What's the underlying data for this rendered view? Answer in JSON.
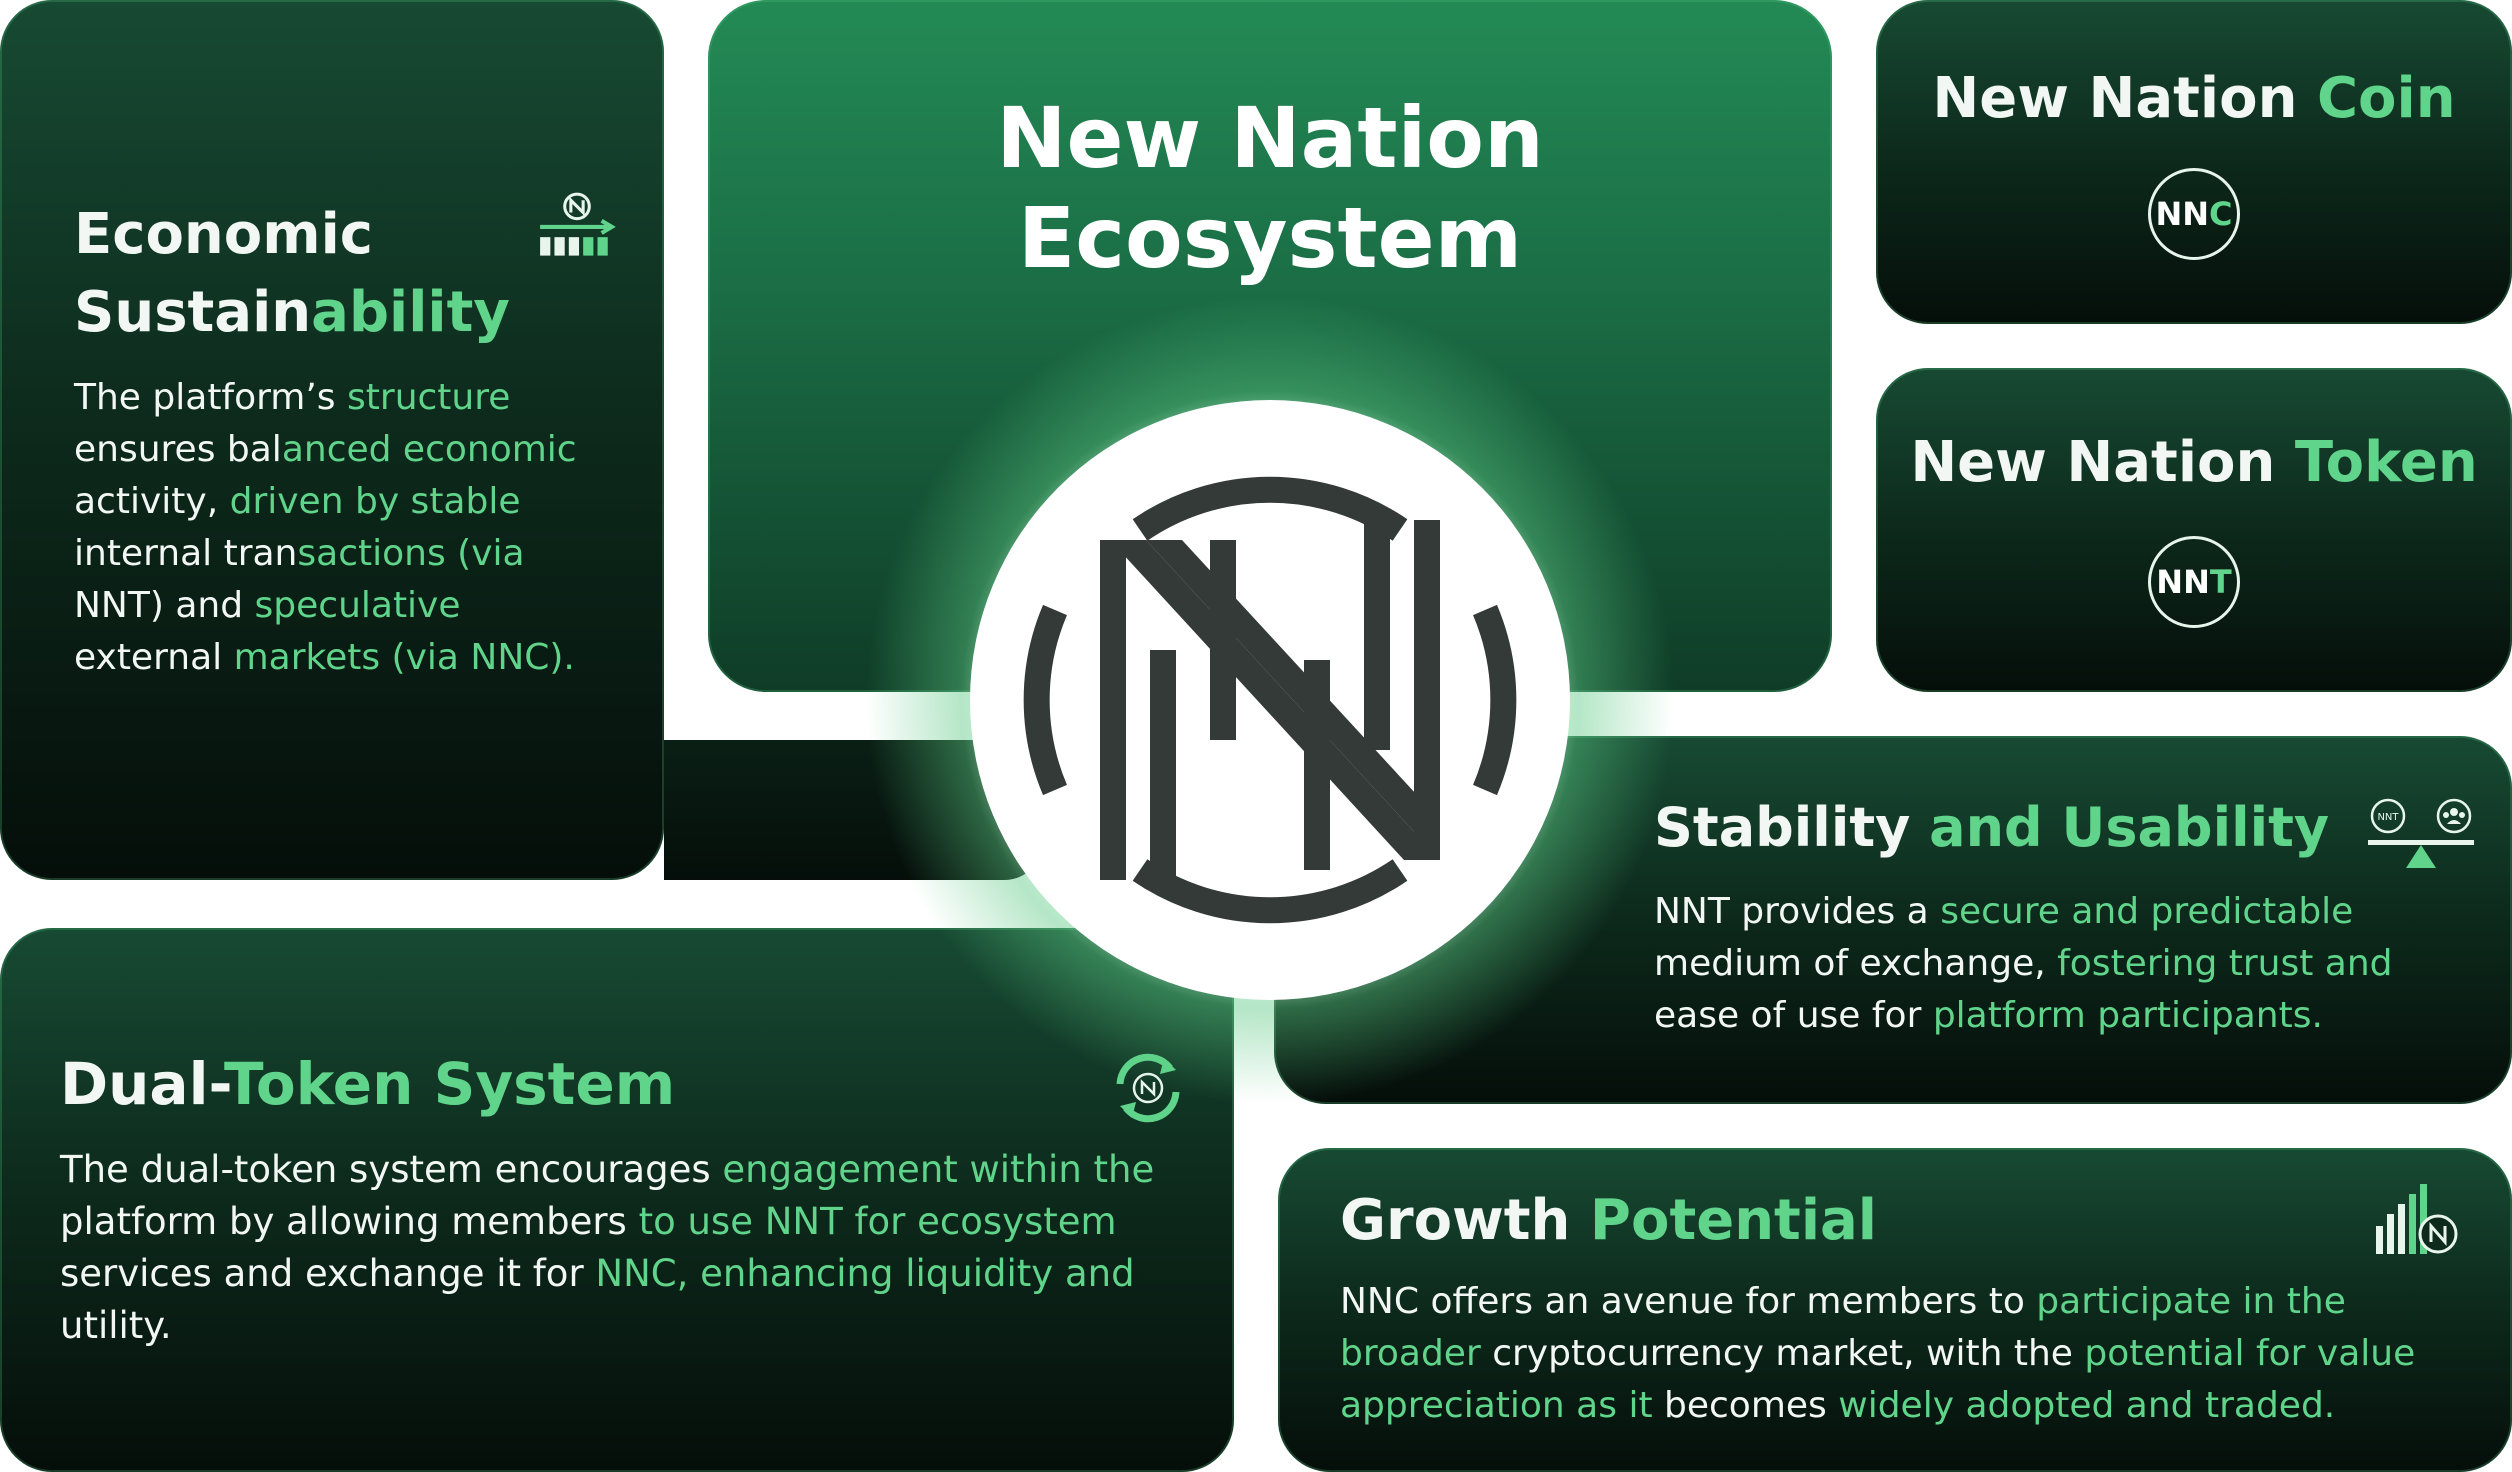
{
  "center": {
    "title_line1": "New Nation",
    "title_line2": "Ecosystem"
  },
  "economic": {
    "title_w": "Economic",
    "title_sus": "Sustain",
    "title_g": "ability",
    "body": [
      {
        "t": "The platform’s ",
        "c": "w"
      },
      {
        "t": "structure",
        "c": "g"
      },
      {
        "t": " ensures bal",
        "c": "w"
      },
      {
        "t": "anced economic",
        "c": "g"
      },
      {
        "t": " activity, ",
        "c": "w"
      },
      {
        "t": "driven by stable",
        "c": "g"
      },
      {
        "t": " internal tran",
        "c": "w"
      },
      {
        "t": "sactions (via",
        "c": "g"
      },
      {
        "t": " NNT) and ",
        "c": "w"
      },
      {
        "t": "speculative",
        "c": "g"
      },
      {
        "t": " external ",
        "c": "w"
      },
      {
        "t": "markets (via NNC).",
        "c": "g"
      }
    ]
  },
  "nnc": {
    "title_w": "New Nation ",
    "title_g": "Coin",
    "badge_a": "NN",
    "badge_b": "C"
  },
  "nnt": {
    "title_w": "New Nation ",
    "title_g": "Token",
    "badge_a": "NN",
    "badge_b": "T"
  },
  "stability": {
    "title_w": "Stability ",
    "title_g": "and Usability",
    "icon_left_label": "NNT",
    "body": [
      {
        "t": "NNT provides a ",
        "c": "w"
      },
      {
        "t": "secure and predictable",
        "c": "g"
      },
      {
        "t": " medium of exchange, ",
        "c": "w"
      },
      {
        "t": "fostering trust and",
        "c": "g"
      },
      {
        "t": " ease of use for ",
        "c": "w"
      },
      {
        "t": "platform participants.",
        "c": "g"
      }
    ]
  },
  "dual": {
    "title_w": "Dual-",
    "title_g1": "Token ",
    "title_g": "System",
    "body": [
      {
        "t": "The dual-token system encourages ",
        "c": "w"
      },
      {
        "t": "engagement within the",
        "c": "g"
      },
      {
        "t": " platform by allowing members ",
        "c": "w"
      },
      {
        "t": "to use NNT for ecosystem",
        "c": "g"
      },
      {
        "t": " services and exchange it for ",
        "c": "w"
      },
      {
        "t": "NNC, enhancing liquidity and",
        "c": "g"
      },
      {
        "t": " utility.",
        "c": "w"
      }
    ]
  },
  "growth": {
    "title_w": "Growth ",
    "title_g": "Potential",
    "body": [
      {
        "t": "NNC offers an avenue for members to ",
        "c": "w"
      },
      {
        "t": "participate in the broader",
        "c": "g"
      },
      {
        "t": " cryptocurrency market, with the ",
        "c": "w"
      },
      {
        "t": "potential for value appreciation as it",
        "c": "g"
      },
      {
        "t": " becomes ",
        "c": "w"
      },
      {
        "t": "widely adopted and traded.",
        "c": "g"
      }
    ]
  }
}
